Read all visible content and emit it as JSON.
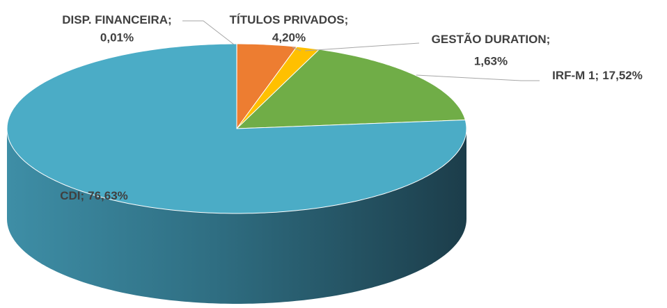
{
  "chart_data": {
    "type": "pie3d",
    "categories": [
      "DISP. FINANCEIRA",
      "TÍTULOS PRIVADOS",
      "GESTÃO DURATION",
      "IRF-M 1",
      "CDI"
    ],
    "values": [
      0.01,
      4.2,
      1.63,
      17.52,
      76.63
    ],
    "value_labels": [
      "0,01%",
      "4,20%",
      "1,63%",
      "17,52%",
      "76,63%"
    ],
    "label_separator": ";",
    "colors": [
      "#4472c4",
      "#ed7d31",
      "#ffc000",
      "#70ad47",
      "#4bacc6"
    ]
  }
}
